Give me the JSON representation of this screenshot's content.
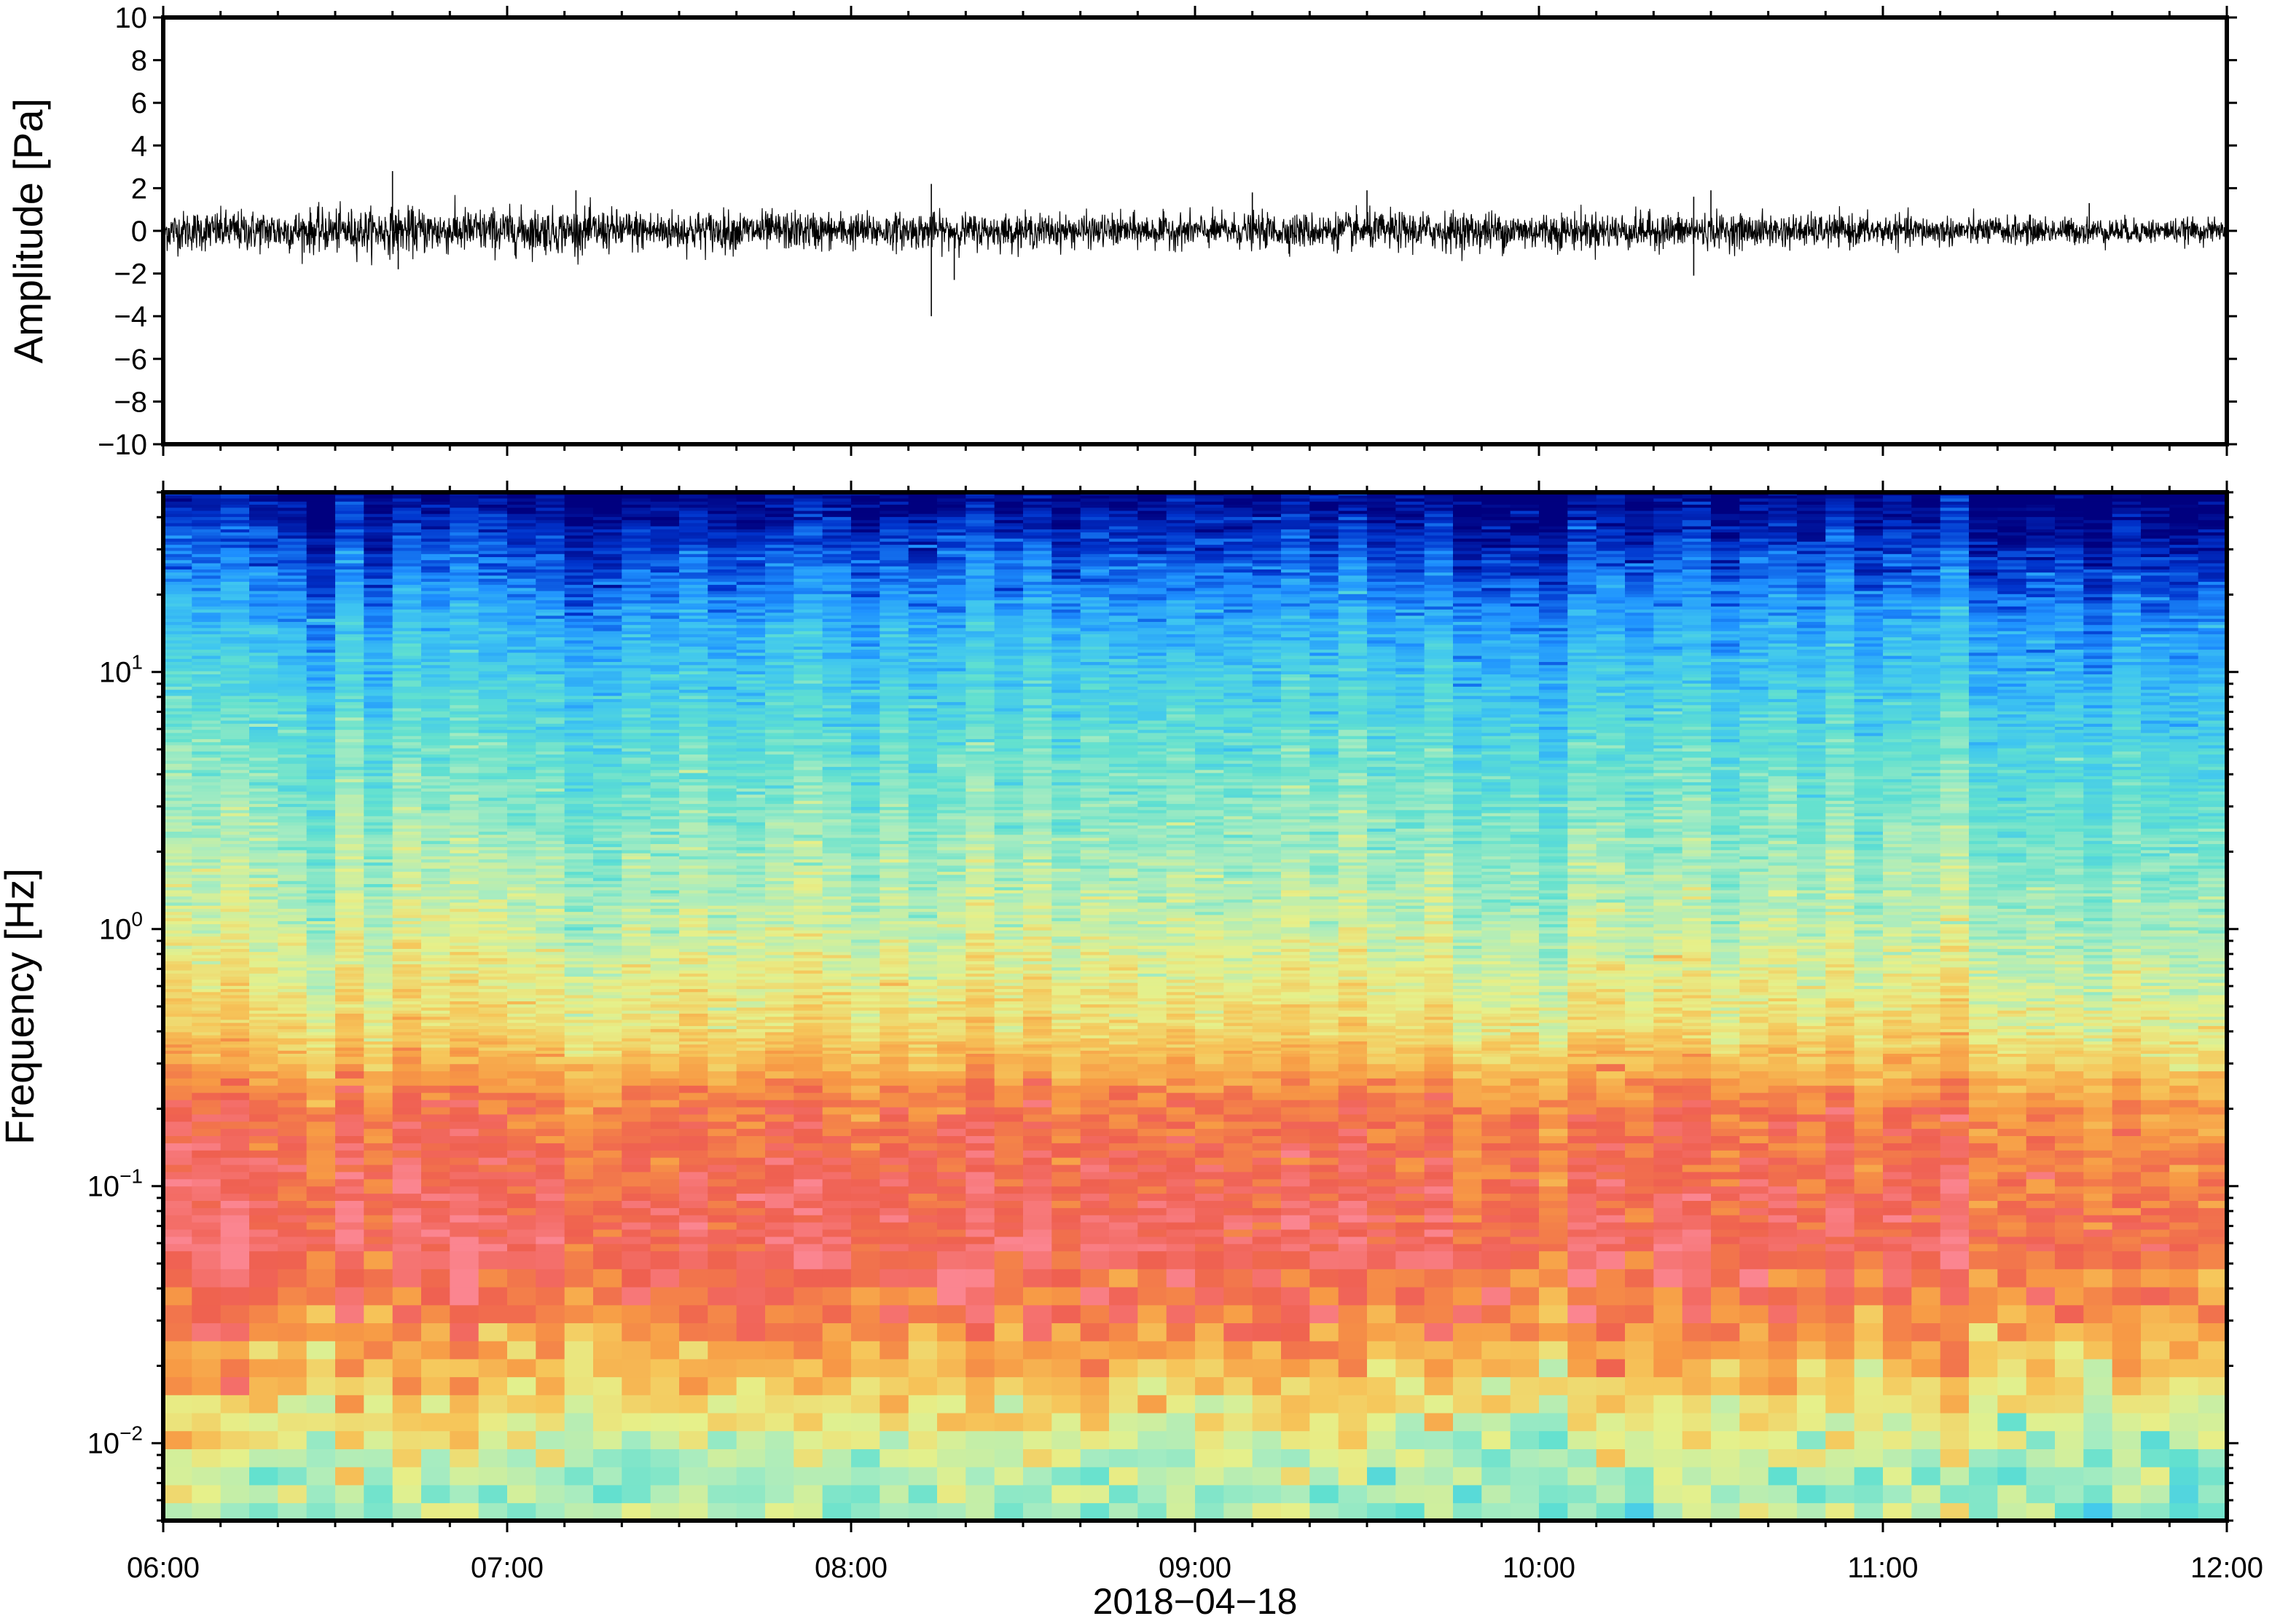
{
  "chart_data": [
    {
      "type": "line",
      "title": "",
      "xlabel": "",
      "ylabel": "Amplitude [Pa]",
      "xlim": [
        "06:00",
        "12:00"
      ],
      "ylim": [
        -10,
        10
      ],
      "yticks": [
        10,
        8,
        6,
        4,
        2,
        0,
        -2,
        -4,
        -6,
        -8,
        -10
      ],
      "ytick_labels": [
        "10",
        "8",
        "6",
        "4",
        "2",
        "0",
        "−2",
        "−4",
        "−6",
        "−8",
        "−10"
      ],
      "grid": false,
      "series": [
        {
          "color": "#000000",
          "description_values": "noise trace, typical envelope about ±1 Pa",
          "noise_envelope_pa": [
            1.2,
            1.3,
            1.4,
            1.3,
            1.2,
            1.1,
            1.0,
            1.0,
            1.1,
            1.2,
            1.1,
            1.0,
            0.9,
            0.8,
            0.7
          ],
          "peaks": [
            {
              "time": "06:40",
              "value": 2.8
            },
            {
              "time": "06:41",
              "value": -1.8
            },
            {
              "time": "07:12",
              "value": 1.9
            },
            {
              "time": "08:14",
              "value": 2.2
            },
            {
              "time": "08:14",
              "value": -4.0
            },
            {
              "time": "08:18",
              "value": -2.3
            },
            {
              "time": "09:10",
              "value": 1.8
            },
            {
              "time": "09:30",
              "value": 1.9
            },
            {
              "time": "10:27",
              "value": 1.6
            },
            {
              "time": "10:27",
              "value": -2.1
            },
            {
              "time": "10:30",
              "value": 1.9
            },
            {
              "time": "11:36",
              "value": 1.3
            }
          ]
        }
      ]
    },
    {
      "type": "heatmap",
      "title": "",
      "xlabel": "2018−04−18",
      "ylabel": "Frequency [Hz]",
      "xticks": [
        "06:00",
        "07:00",
        "08:00",
        "09:00",
        "10:00",
        "11:00",
        "12:00"
      ],
      "y_scale": "log",
      "ylim": [
        0.005,
        50
      ],
      "yticks": [
        {
          "value": 0.01,
          "base": "10",
          "exp": "−2"
        },
        {
          "value": 0.1,
          "base": "10",
          "exp": "−1"
        },
        {
          "value": 1,
          "base": "10",
          "exp": "0"
        },
        {
          "value": 10,
          "base": "10",
          "exp": "1"
        }
      ],
      "colormap": [
        "#00007f",
        "#0033cc",
        "#1e90ff",
        "#3fc6f0",
        "#60e0d0",
        "#a8ecc0",
        "#e6f08a",
        "#f6c65a",
        "#f79a45",
        "#ef6050",
        "#fb8590"
      ],
      "power_levels_by_frequency": [
        {
          "frequency_hz": 50,
          "level": 0.0
        },
        {
          "frequency_hz": 30,
          "level": 0.12
        },
        {
          "frequency_hz": 15,
          "level": 0.26
        },
        {
          "frequency_hz": 5,
          "level": 0.4
        },
        {
          "frequency_hz": 1,
          "level": 0.55
        },
        {
          "frequency_hz": 0.4,
          "level": 0.66
        },
        {
          "frequency_hz": 0.2,
          "level": 0.86
        },
        {
          "frequency_hz": 0.06,
          "level": 0.93
        },
        {
          "frequency_hz": 0.03,
          "level": 0.84
        },
        {
          "frequency_hz": 0.015,
          "level": 0.66
        },
        {
          "frequency_hz": 0.007,
          "level": 0.5
        }
      ],
      "grid": false
    }
  ]
}
